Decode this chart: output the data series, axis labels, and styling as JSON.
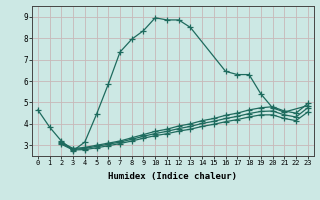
{
  "xlabel": "Humidex (Indice chaleur)",
  "bg_color": "#cce8e4",
  "grid_color": "#c8b8b8",
  "line_color": "#1e6b5e",
  "xlim": [
    -0.5,
    23.5
  ],
  "ylim": [
    2.5,
    9.5
  ],
  "xticks": [
    0,
    1,
    2,
    3,
    4,
    5,
    6,
    7,
    8,
    9,
    10,
    11,
    12,
    13,
    14,
    15,
    16,
    17,
    18,
    19,
    20,
    21,
    22,
    23
  ],
  "yticks": [
    3,
    4,
    5,
    6,
    7,
    8,
    9
  ],
  "curve1_x": [
    0,
    1,
    2,
    3,
    4,
    5,
    6,
    7,
    8,
    9,
    10,
    11,
    12,
    13,
    16,
    17,
    18,
    19,
    20,
    21,
    23
  ],
  "curve1_y": [
    4.65,
    3.85,
    3.2,
    2.75,
    3.15,
    4.45,
    5.85,
    7.35,
    7.95,
    8.35,
    8.95,
    8.85,
    8.85,
    8.5,
    6.45,
    6.3,
    6.3,
    5.4,
    4.75,
    4.55,
    4.85
  ],
  "curve2_x": [
    2,
    3,
    4,
    5,
    6,
    7,
    8,
    9,
    10,
    11,
    12,
    13,
    14,
    15,
    16,
    17,
    18,
    19,
    20,
    21,
    22,
    23
  ],
  "curve2_y": [
    3.15,
    2.85,
    2.9,
    3.0,
    3.1,
    3.2,
    3.35,
    3.5,
    3.65,
    3.75,
    3.9,
    4.0,
    4.15,
    4.25,
    4.4,
    4.5,
    4.65,
    4.75,
    4.8,
    4.6,
    4.5,
    4.95
  ],
  "curve3_x": [
    2,
    3,
    4,
    5,
    6,
    7,
    8,
    9,
    10,
    11,
    12,
    13,
    14,
    15,
    16,
    17,
    18,
    19,
    20,
    21,
    22,
    23
  ],
  "curve3_y": [
    3.1,
    2.82,
    2.85,
    2.95,
    3.05,
    3.15,
    3.28,
    3.42,
    3.55,
    3.65,
    3.78,
    3.88,
    4.02,
    4.12,
    4.25,
    4.35,
    4.48,
    4.58,
    4.6,
    4.42,
    4.32,
    4.75
  ],
  "curve4_x": [
    2,
    3,
    4,
    5,
    6,
    7,
    8,
    9,
    10,
    11,
    12,
    13,
    14,
    15,
    16,
    17,
    18,
    19,
    20,
    21,
    22,
    23
  ],
  "curve4_y": [
    3.05,
    2.78,
    2.8,
    2.88,
    2.98,
    3.08,
    3.2,
    3.33,
    3.45,
    3.54,
    3.66,
    3.75,
    3.88,
    3.98,
    4.1,
    4.2,
    4.32,
    4.42,
    4.42,
    4.25,
    4.15,
    4.55
  ]
}
